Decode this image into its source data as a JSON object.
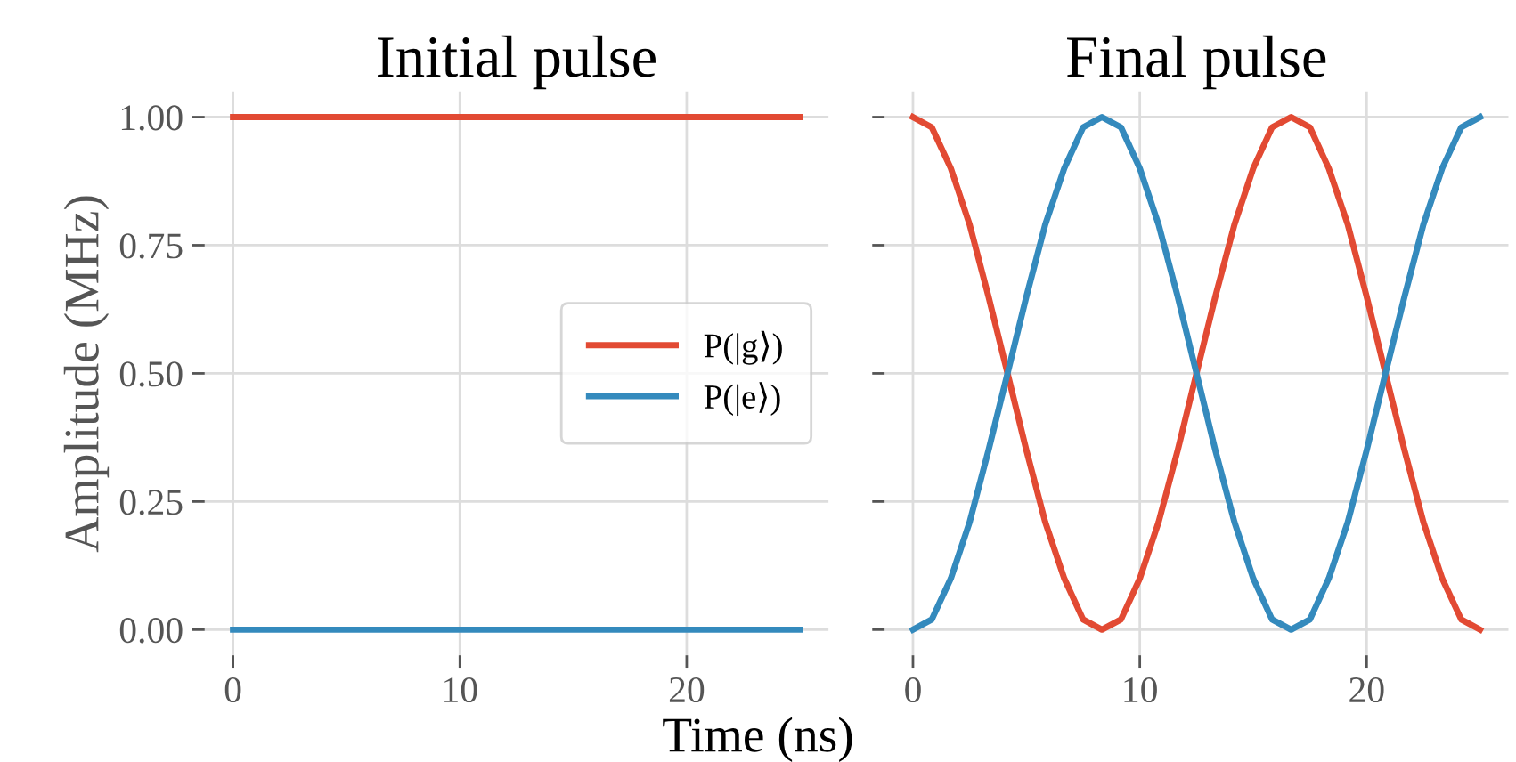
{
  "chart_data": [
    {
      "type": "line",
      "title": "Initial pulse",
      "ylabel": "Amplitude (MHz)",
      "xlabel": "Time (ns)",
      "xlim": [
        -1.25,
        26.25
      ],
      "ylim": [
        -0.05,
        1.05
      ],
      "xticks": [
        0,
        10,
        20
      ],
      "yticks": [
        {
          "value": 0,
          "label": "0.00"
        },
        {
          "value": 0.25,
          "label": "0.25"
        },
        {
          "value": 0.5,
          "label": "0.50"
        },
        {
          "value": 0.75,
          "label": "0.75"
        },
        {
          "value": 1.0,
          "label": "1.00"
        }
      ],
      "grid": true,
      "legend": "right",
      "marker": "none",
      "line_style": "solid",
      "series": [
        {
          "name": "P(|g⟩)",
          "color": "#e24a33",
          "x": [
            0,
            25
          ],
          "values": [
            1,
            1
          ]
        },
        {
          "name": "P(|e⟩)",
          "color": "#348abd",
          "x": [
            0,
            25
          ],
          "values": [
            0,
            0
          ]
        }
      ]
    },
    {
      "type": "line",
      "title": "Final pulse",
      "xlim": [
        -1.25,
        26.25
      ],
      "ylim": [
        -0.05,
        1.05
      ],
      "xticks": [
        0,
        10,
        20
      ],
      "yticks": [
        0.0,
        0.25,
        0.5,
        0.75,
        1.0
      ],
      "grid": true,
      "tick_labels": "x",
      "marker": "none",
      "line_style": "solid",
      "series": [
        {
          "color": "#e24a33",
          "x": [
            0,
            0.83,
            1.67,
            2.5,
            3.33,
            4.17,
            5,
            5.83,
            6.67,
            7.5,
            8.33,
            9.17,
            10,
            10.83,
            11.67,
            12.5,
            13.33,
            14.17,
            15,
            15.83,
            16.67,
            17.5,
            18.33,
            19.17,
            20,
            20.83,
            21.67,
            22.5,
            23.33,
            24.17,
            25
          ],
          "values": [
            1,
            0.98,
            0.9,
            0.79,
            0.65,
            0.5,
            0.35,
            0.21,
            0.1,
            0.02,
            0,
            0.02,
            0.1,
            0.21,
            0.35,
            0.5,
            0.65,
            0.79,
            0.9,
            0.98,
            1,
            0.98,
            0.9,
            0.79,
            0.65,
            0.5,
            0.35,
            0.21,
            0.1,
            0.02,
            0
          ]
        },
        {
          "color": "#348abd",
          "x": [
            0,
            0.83,
            1.67,
            2.5,
            3.33,
            4.17,
            5,
            5.83,
            6.67,
            7.5,
            8.33,
            9.17,
            10,
            10.83,
            11.67,
            12.5,
            13.33,
            14.17,
            15,
            15.83,
            16.67,
            17.5,
            18.33,
            19.17,
            20,
            20.83,
            21.67,
            22.5,
            23.33,
            24.17,
            25
          ],
          "values": [
            0,
            0.02,
            0.1,
            0.21,
            0.35,
            0.5,
            0.65,
            0.79,
            0.9,
            0.98,
            1,
            0.98,
            0.9,
            0.79,
            0.65,
            0.5,
            0.35,
            0.21,
            0.1,
            0.02,
            0,
            0.02,
            0.1,
            0.21,
            0.35,
            0.5,
            0.65,
            0.79,
            0.9,
            0.98,
            1
          ]
        }
      ]
    }
  ]
}
